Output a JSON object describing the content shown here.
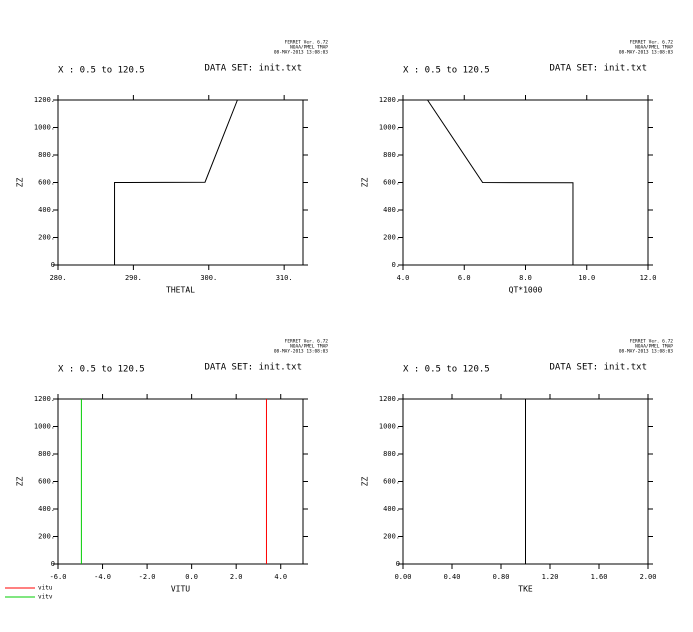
{
  "chart_data": [
    {
      "type": "line",
      "header_left": "X : 0.5 to 120.5",
      "header_right": "DATA SET: init.txt",
      "stamp": [
        "FERRET Ver. 6.72",
        "NOAA/PMEL TMAP",
        "08-MAY-2013 13:08:03"
      ],
      "xlabel": "THETAL",
      "ylabel": "ZZ",
      "xlim": [
        280,
        312.5
      ],
      "ylim": [
        0,
        1200
      ],
      "xticks": [
        {
          "value": 280,
          "label": "280."
        },
        {
          "value": 290,
          "label": "290."
        },
        {
          "value": 300,
          "label": "300."
        },
        {
          "value": 310,
          "label": "310."
        }
      ],
      "yticks": [
        0,
        {
          "value": 200,
          "label": "200."
        },
        {
          "value": 400,
          "label": "400."
        },
        {
          "value": 600,
          "label": "600."
        },
        {
          "value": 800,
          "label": "800."
        },
        {
          "value": 1000,
          "label": "1000."
        },
        {
          "value": 1200,
          "label": "1200."
        }
      ],
      "series": [
        {
          "color": "#000000",
          "x": [
            287.5,
            287.5,
            299.5,
            303.8
          ],
          "values": [
            0,
            600,
            602,
            1200
          ]
        }
      ]
    },
    {
      "type": "line",
      "header_left": "X : 0.5 to 120.5",
      "header_right": "DATA SET: init.txt",
      "stamp": [
        "FERRET Ver. 6.72",
        "NOAA/PMEL TMAP",
        "08-MAY-2013 13:08:03"
      ],
      "xlabel": "QT*1000",
      "ylabel": "ZZ",
      "xlim": [
        4,
        12
      ],
      "ylim": [
        0,
        1200
      ],
      "xticks": [
        {
          "value": 4,
          "label": "4.0"
        },
        {
          "value": 6,
          "label": "6.0"
        },
        {
          "value": 8,
          "label": "8.0"
        },
        {
          "value": 10,
          "label": "10.0"
        },
        {
          "value": 12,
          "label": "12.0"
        }
      ],
      "yticks": [
        {
          "value": 0,
          "label": "0."
        },
        {
          "value": 200,
          "label": "200."
        },
        {
          "value": 400,
          "label": "400."
        },
        {
          "value": 600,
          "label": "600."
        },
        {
          "value": 800,
          "label": "800."
        },
        {
          "value": 1000,
          "label": "1000."
        },
        {
          "value": 1200,
          "label": "1200."
        }
      ],
      "series": [
        {
          "color": "#000000",
          "x": [
            4.8,
            6.6,
            9.55,
            9.55
          ],
          "values": [
            1200,
            600,
            598,
            0
          ]
        }
      ]
    },
    {
      "type": "line",
      "header_left": "X : 0.5 to 120.5",
      "header_right": "DATA SET: init.txt",
      "stamp": [
        "FERRET Ver. 6.72",
        "NOAA/PMEL TMAP",
        "08-MAY-2013 13:08:03"
      ],
      "xlabel": "VITU",
      "ylabel": "ZZ",
      "xlim": [
        -6,
        5
      ],
      "ylim": [
        0,
        1200
      ],
      "xticks": [
        {
          "value": -6,
          "label": "-6.0"
        },
        {
          "value": -4,
          "label": "-4.0"
        },
        {
          "value": -2,
          "label": "-2.0"
        },
        {
          "value": 0,
          "label": "0.0"
        },
        {
          "value": 2,
          "label": "2.0"
        },
        {
          "value": 4,
          "label": "4.0"
        }
      ],
      "yticks": [
        0,
        {
          "value": 200,
          "label": "200."
        },
        {
          "value": 400,
          "label": "400."
        },
        {
          "value": 600,
          "label": "600."
        },
        {
          "value": 800,
          "label": "800."
        },
        {
          "value": 1000,
          "label": "1000."
        },
        {
          "value": 1200,
          "label": "1200."
        }
      ],
      "series": [
        {
          "name": "vitu",
          "color": "#ff0000",
          "x": [
            3.36,
            3.36
          ],
          "values": [
            0,
            1200
          ]
        },
        {
          "name": "vitv",
          "color": "#00cc00",
          "x": [
            -4.95,
            -4.95
          ],
          "values": [
            0,
            1200
          ]
        }
      ]
    },
    {
      "type": "line",
      "header_left": "X : 0.5 to 120.5",
      "header_right": "DATA SET: init.txt",
      "stamp": [
        "FERRET Ver. 6.72",
        "NOAA/PMEL TMAP",
        "08-MAY-2013 13:08:03"
      ],
      "xlabel": "TKE",
      "ylabel": "ZZ",
      "xlim": [
        0,
        2
      ],
      "ylim": [
        0,
        1200
      ],
      "xticks": [
        {
          "value": 0,
          "label": "0.00"
        },
        {
          "value": 0.4,
          "label": "0.40"
        },
        {
          "value": 0.8,
          "label": "0.80"
        },
        {
          "value": 1.2,
          "label": "1.20"
        },
        {
          "value": 1.6,
          "label": "1.60"
        },
        {
          "value": 2,
          "label": "2.00"
        }
      ],
      "yticks": [
        0,
        {
          "value": 200,
          "label": "200."
        },
        {
          "value": 400,
          "label": "400."
        },
        {
          "value": 600,
          "label": "600."
        },
        {
          "value": 800,
          "label": "800."
        },
        {
          "value": 1000,
          "label": "1000."
        },
        {
          "value": 1200,
          "label": "1200."
        }
      ],
      "series": [
        {
          "color": "#000000",
          "x": [
            1,
            1
          ],
          "values": [
            0,
            1200
          ]
        }
      ]
    }
  ]
}
